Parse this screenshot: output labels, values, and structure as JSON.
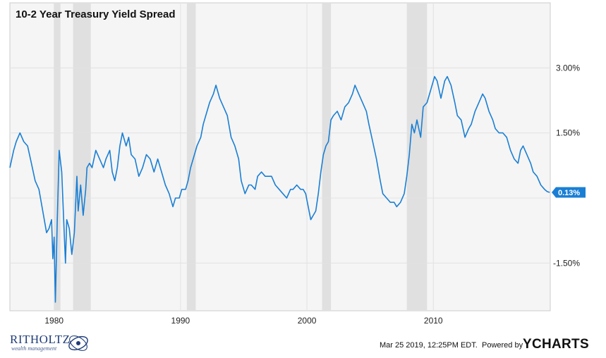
{
  "chart_data": {
    "type": "line",
    "title": "10-2 Year Treasury Yield Spread",
    "xlabel": "",
    "ylabel": "",
    "x_ticks": [
      "1980",
      "1990",
      "2000",
      "2010"
    ],
    "y_ticks": [
      "3.00%",
      "1.50%",
      "-1.50%"
    ],
    "ylim": [
      -2.6,
      4.5
    ],
    "xlim": [
      1976.5,
      2019.25
    ],
    "grid": true,
    "recessions": [
      [
        1980.0,
        1980.5
      ],
      [
        1981.5,
        1982.9
      ],
      [
        1990.5,
        1991.2
      ],
      [
        2001.2,
        2001.9
      ],
      [
        2007.9,
        2009.5
      ]
    ],
    "series": [
      {
        "color": "#1a7fd4",
        "points": [
          [
            1976.5,
            0.7
          ],
          [
            1976.8,
            1.1
          ],
          [
            1977.0,
            1.3
          ],
          [
            1977.3,
            1.5
          ],
          [
            1977.6,
            1.3
          ],
          [
            1977.9,
            1.2
          ],
          [
            1978.2,
            0.8
          ],
          [
            1978.5,
            0.4
          ],
          [
            1978.8,
            0.2
          ],
          [
            1979.1,
            -0.3
          ],
          [
            1979.4,
            -0.8
          ],
          [
            1979.6,
            -0.7
          ],
          [
            1979.8,
            -0.5
          ],
          [
            1979.9,
            -1.4
          ],
          [
            1980.0,
            -0.9
          ],
          [
            1980.1,
            -2.4
          ],
          [
            1980.25,
            -0.5
          ],
          [
            1980.4,
            1.1
          ],
          [
            1980.6,
            0.6
          ],
          [
            1980.8,
            -0.8
          ],
          [
            1980.9,
            -1.5
          ],
          [
            1981.0,
            -0.5
          ],
          [
            1981.2,
            -0.7
          ],
          [
            1981.4,
            -1.3
          ],
          [
            1981.6,
            -0.8
          ],
          [
            1981.8,
            0.5
          ],
          [
            1981.9,
            -0.3
          ],
          [
            1982.1,
            0.3
          ],
          [
            1982.3,
            -0.4
          ],
          [
            1982.5,
            0.2
          ],
          [
            1982.6,
            0.7
          ],
          [
            1982.8,
            0.8
          ],
          [
            1983.0,
            0.7
          ],
          [
            1983.3,
            1.1
          ],
          [
            1983.6,
            0.9
          ],
          [
            1983.9,
            0.7
          ],
          [
            1984.1,
            0.9
          ],
          [
            1984.4,
            1.1
          ],
          [
            1984.6,
            0.6
          ],
          [
            1984.8,
            0.4
          ],
          [
            1985.0,
            0.7
          ],
          [
            1985.2,
            1.2
          ],
          [
            1985.4,
            1.5
          ],
          [
            1985.7,
            1.2
          ],
          [
            1985.9,
            1.4
          ],
          [
            1986.1,
            1.0
          ],
          [
            1986.4,
            0.9
          ],
          [
            1986.7,
            0.5
          ],
          [
            1987.0,
            0.7
          ],
          [
            1987.3,
            1.0
          ],
          [
            1987.6,
            0.9
          ],
          [
            1987.9,
            0.6
          ],
          [
            1988.2,
            0.9
          ],
          [
            1988.5,
            0.6
          ],
          [
            1988.8,
            0.3
          ],
          [
            1989.1,
            0.1
          ],
          [
            1989.4,
            -0.2
          ],
          [
            1989.6,
            0.0
          ],
          [
            1989.9,
            0.0
          ],
          [
            1990.1,
            0.2
          ],
          [
            1990.4,
            0.2
          ],
          [
            1990.6,
            0.4
          ],
          [
            1990.8,
            0.7
          ],
          [
            1991.0,
            0.9
          ],
          [
            1991.3,
            1.2
          ],
          [
            1991.6,
            1.4
          ],
          [
            1991.8,
            1.7
          ],
          [
            1992.0,
            1.9
          ],
          [
            1992.3,
            2.2
          ],
          [
            1992.6,
            2.4
          ],
          [
            1992.8,
            2.6
          ],
          [
            1993.1,
            2.3
          ],
          [
            1993.4,
            2.1
          ],
          [
            1993.7,
            1.9
          ],
          [
            1994.0,
            1.4
          ],
          [
            1994.3,
            1.2
          ],
          [
            1994.6,
            0.9
          ],
          [
            1994.8,
            0.4
          ],
          [
            1995.1,
            0.1
          ],
          [
            1995.4,
            0.3
          ],
          [
            1995.6,
            0.3
          ],
          [
            1995.9,
            0.2
          ],
          [
            1996.1,
            0.5
          ],
          [
            1996.4,
            0.6
          ],
          [
            1996.7,
            0.5
          ],
          [
            1996.9,
            0.5
          ],
          [
            1997.2,
            0.5
          ],
          [
            1997.5,
            0.3
          ],
          [
            1997.8,
            0.2
          ],
          [
            1998.1,
            0.1
          ],
          [
            1998.4,
            0.0
          ],
          [
            1998.7,
            0.2
          ],
          [
            1998.9,
            0.2
          ],
          [
            1999.2,
            0.3
          ],
          [
            1999.5,
            0.2
          ],
          [
            1999.7,
            0.2
          ],
          [
            1999.9,
            0.1
          ],
          [
            2000.1,
            -0.2
          ],
          [
            2000.3,
            -0.5
          ],
          [
            2000.5,
            -0.4
          ],
          [
            2000.7,
            -0.3
          ],
          [
            2000.9,
            0.1
          ],
          [
            2001.1,
            0.6
          ],
          [
            2001.3,
            1.0
          ],
          [
            2001.5,
            1.2
          ],
          [
            2001.7,
            1.3
          ],
          [
            2001.9,
            1.8
          ],
          [
            2002.1,
            1.9
          ],
          [
            2002.4,
            2.0
          ],
          [
            2002.7,
            1.8
          ],
          [
            2003.0,
            2.1
          ],
          [
            2003.3,
            2.2
          ],
          [
            2003.6,
            2.4
          ],
          [
            2003.8,
            2.6
          ],
          [
            2004.1,
            2.4
          ],
          [
            2004.4,
            2.2
          ],
          [
            2004.7,
            2.0
          ],
          [
            2004.9,
            1.7
          ],
          [
            2005.2,
            1.3
          ],
          [
            2005.5,
            0.9
          ],
          [
            2005.8,
            0.4
          ],
          [
            2006.0,
            0.1
          ],
          [
            2006.3,
            0.0
          ],
          [
            2006.6,
            -0.1
          ],
          [
            2006.9,
            -0.1
          ],
          [
            2007.1,
            -0.2
          ],
          [
            2007.4,
            -0.1
          ],
          [
            2007.7,
            0.1
          ],
          [
            2007.9,
            0.5
          ],
          [
            2008.1,
            1.0
          ],
          [
            2008.3,
            1.7
          ],
          [
            2008.5,
            1.5
          ],
          [
            2008.7,
            1.8
          ],
          [
            2009.0,
            1.4
          ],
          [
            2009.2,
            2.1
          ],
          [
            2009.5,
            2.2
          ],
          [
            2009.8,
            2.5
          ],
          [
            2010.1,
            2.8
          ],
          [
            2010.3,
            2.7
          ],
          [
            2010.6,
            2.3
          ],
          [
            2010.9,
            2.7
          ],
          [
            2011.1,
            2.8
          ],
          [
            2011.4,
            2.6
          ],
          [
            2011.7,
            2.2
          ],
          [
            2011.9,
            1.9
          ],
          [
            2012.2,
            1.8
          ],
          [
            2012.5,
            1.4
          ],
          [
            2012.8,
            1.6
          ],
          [
            2013.0,
            1.7
          ],
          [
            2013.3,
            2.0
          ],
          [
            2013.6,
            2.2
          ],
          [
            2013.9,
            2.4
          ],
          [
            2014.1,
            2.3
          ],
          [
            2014.4,
            2.0
          ],
          [
            2014.7,
            1.8
          ],
          [
            2014.9,
            1.6
          ],
          [
            2015.2,
            1.5
          ],
          [
            2015.5,
            1.5
          ],
          [
            2015.8,
            1.4
          ],
          [
            2016.1,
            1.1
          ],
          [
            2016.4,
            0.9
          ],
          [
            2016.7,
            0.8
          ],
          [
            2016.9,
            1.1
          ],
          [
            2017.1,
            1.2
          ],
          [
            2017.4,
            1.0
          ],
          [
            2017.7,
            0.8
          ],
          [
            2017.9,
            0.6
          ],
          [
            2018.2,
            0.5
          ],
          [
            2018.5,
            0.3
          ],
          [
            2018.8,
            0.2
          ],
          [
            2019.0,
            0.15
          ],
          [
            2019.2,
            0.13
          ]
        ]
      }
    ],
    "last_value": 0.13,
    "last_value_label": "0.13%",
    "timestamp": "Mar 25 2019, 12:25PM EDT.",
    "powered_by": "Powered by",
    "brand": "YCHARTS",
    "logo_name": "RITHOLTZ",
    "logo_sub": "wealth management"
  }
}
